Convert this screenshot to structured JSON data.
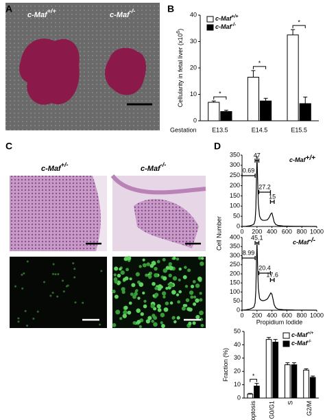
{
  "panel_labels": [
    "A",
    "B",
    "C",
    "D"
  ],
  "panel_a": {
    "labels": [
      {
        "name": "c-Maf",
        "genotype": "+/+"
      },
      {
        "name": "c-Maf",
        "genotype": "-/-"
      }
    ]
  },
  "panel_c": {
    "labels": [
      {
        "name": "c-Maf",
        "genotype": "+/-"
      },
      {
        "name": "c-Maf",
        "genotype": "-/-"
      }
    ]
  },
  "chart_data": [
    {
      "type": "bar",
      "ylabel": "Cellularity in fetal liver (x10",
      "ylabel_sup": "6",
      "ylabel_end": ")",
      "xlabel": "Gestation",
      "categories": [
        "E13.5",
        "E14.5",
        "E15.5"
      ],
      "series": [
        {
          "name": "c-Maf",
          "genotype": "+/+",
          "color": "#ffffff",
          "values": [
            7,
            16.5,
            32.5
          ],
          "errors": [
            0.5,
            2.5,
            2
          ]
        },
        {
          "name": "c-Maf",
          "genotype": "-/-",
          "color": "#000000",
          "values": [
            3.5,
            7.5,
            6.5
          ],
          "errors": [
            0.5,
            1,
            2.5
          ]
        }
      ],
      "ylim": [
        0,
        40
      ],
      "yticks": [
        0,
        10,
        20,
        30,
        40
      ],
      "significance": [
        "*",
        "*",
        "*"
      ]
    },
    {
      "type": "line",
      "name": "c-Maf",
      "genotype": "+/+",
      "ylabel": "Cell Number",
      "color": "#000000",
      "x": [
        0,
        50,
        100,
        130,
        160,
        175,
        185,
        193,
        200,
        208,
        218,
        235,
        255,
        280,
        310,
        340,
        365,
        385,
        400,
        415,
        430,
        450,
        480,
        550,
        700,
        1000
      ],
      "values": [
        0,
        1,
        3,
        6,
        12,
        30,
        90,
        230,
        345,
        240,
        110,
        50,
        35,
        30,
        30,
        33,
        45,
        62,
        66,
        45,
        22,
        10,
        5,
        2,
        1,
        0
      ],
      "xlim": [
        0,
        1000
      ],
      "xticks": [
        0,
        200,
        400,
        600,
        800,
        1000
      ],
      "ylim": [
        0,
        350
      ],
      "yticks": [
        0,
        50,
        100,
        150,
        200,
        250,
        300,
        350
      ],
      "annotations": [
        "0.69",
        "47",
        "27.2",
        "15"
      ]
    },
    {
      "type": "line",
      "name": "c-Maf",
      "genotype": "-/-",
      "xlabel": "Propidium Iodide",
      "color": "#000000",
      "x": [
        0,
        50,
        100,
        130,
        160,
        175,
        185,
        193,
        200,
        208,
        218,
        235,
        255,
        280,
        310,
        340,
        365,
        385,
        400,
        415,
        430,
        450,
        480,
        550,
        700,
        1000
      ],
      "values": [
        0,
        2,
        6,
        10,
        18,
        40,
        110,
        270,
        375,
        250,
        120,
        65,
        55,
        52,
        55,
        62,
        80,
        95,
        88,
        60,
        30,
        14,
        6,
        3,
        1,
        0
      ],
      "xlim": [
        0,
        1000
      ],
      "xticks": [
        0,
        200,
        400,
        600,
        800,
        1000
      ],
      "ylim": [
        0,
        400
      ],
      "yticks": [
        0,
        50,
        100,
        150,
        200,
        250,
        300,
        350,
        400
      ],
      "annotations": [
        "8.99",
        "45.1",
        "20.4",
        "17.6"
      ]
    },
    {
      "type": "bar",
      "ylabel": "Fraction (%)",
      "categories": [
        "Apoptosis",
        "G0/G1",
        "S",
        "G2/M"
      ],
      "series": [
        {
          "name": "c-Maf",
          "genotype": "+/+",
          "color": "#ffffff",
          "values": [
            3,
            44,
            25,
            21
          ],
          "errors": [
            0.5,
            1.5,
            1.5,
            1
          ]
        },
        {
          "name": "c-Maf",
          "genotype": "-/-",
          "color": "#000000",
          "values": [
            9,
            42,
            25,
            15.5
          ],
          "errors": [
            2,
            2,
            1.5,
            1
          ]
        }
      ],
      "ylim": [
        0,
        50
      ],
      "yticks": [
        0,
        10,
        20,
        30,
        40,
        50
      ],
      "significance": [
        "*",
        null,
        null,
        null
      ]
    }
  ]
}
